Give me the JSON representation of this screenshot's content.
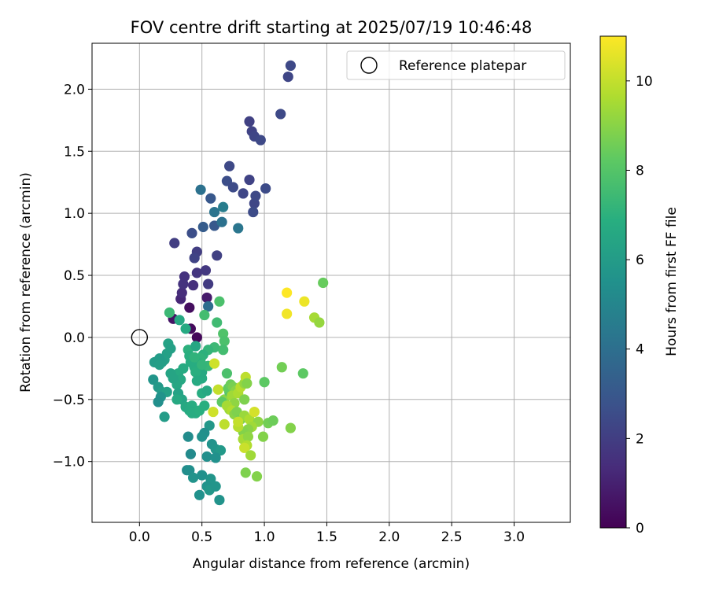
{
  "chart_data": {
    "type": "scatter",
    "title": "FOV centre drift starting at 2025/07/19 10:46:48",
    "xlabel": "Angular distance from reference (arcmin)",
    "ylabel": "Rotation from reference (arcmin)",
    "xlim": [
      -0.38,
      3.45
    ],
    "ylim": [
      -1.49,
      2.37
    ],
    "xticks": [
      0.0,
      0.5,
      1.0,
      1.5,
      2.0,
      2.5,
      3.0
    ],
    "xtick_labels": [
      "0.0",
      "0.5",
      "1.0",
      "1.5",
      "2.0",
      "2.5",
      "3.0"
    ],
    "yticks": [
      -1.0,
      -0.5,
      0.0,
      0.5,
      1.0,
      1.5,
      2.0
    ],
    "ytick_labels": [
      "−1.0",
      "−0.5",
      "0.0",
      "0.5",
      "1.0",
      "1.5",
      "2.0"
    ],
    "grid": true,
    "legend": {
      "position": "top-right",
      "entries": [
        "Reference platepar"
      ]
    },
    "colorbar": {
      "label": "Hours from first FF file",
      "colormap": "viridis",
      "range": [
        0,
        11
      ],
      "ticks": [
        0,
        2,
        4,
        6,
        8,
        10
      ],
      "tick_labels": [
        "0",
        "2",
        "4",
        "6",
        "8",
        "10"
      ]
    },
    "reference_point": {
      "x": 0.0,
      "y": 0.0
    },
    "points": [
      {
        "x": 0.41,
        "y": 0.07,
        "h": 0.3
      },
      {
        "x": 0.46,
        "y": 0.0,
        "h": 0.2
      },
      {
        "x": 0.4,
        "y": 0.24,
        "h": 0.4
      },
      {
        "x": 0.27,
        "y": 0.15,
        "h": 0.6
      },
      {
        "x": 0.54,
        "y": 0.32,
        "h": 0.8
      },
      {
        "x": 0.33,
        "y": 0.31,
        "h": 1.2
      },
      {
        "x": 0.34,
        "y": 0.36,
        "h": 1.4
      },
      {
        "x": 0.43,
        "y": 0.42,
        "h": 1.5
      },
      {
        "x": 0.35,
        "y": 0.43,
        "h": 1.6
      },
      {
        "x": 0.36,
        "y": 0.49,
        "h": 1.6
      },
      {
        "x": 0.46,
        "y": 0.52,
        "h": 1.7
      },
      {
        "x": 0.53,
        "y": 0.54,
        "h": 1.8
      },
      {
        "x": 0.55,
        "y": 0.43,
        "h": 1.9
      },
      {
        "x": 0.46,
        "y": 0.69,
        "h": 2.0
      },
      {
        "x": 0.28,
        "y": 0.76,
        "h": 2.0
      },
      {
        "x": 0.62,
        "y": 0.66,
        "h": 2.1
      },
      {
        "x": 0.44,
        "y": 0.64,
        "h": 2.2
      },
      {
        "x": 0.42,
        "y": 0.84,
        "h": 2.6
      },
      {
        "x": 0.51,
        "y": 0.89,
        "h": 3.2
      },
      {
        "x": 0.6,
        "y": 0.9,
        "h": 3.0
      },
      {
        "x": 0.66,
        "y": 0.93,
        "h": 4.1
      },
      {
        "x": 0.6,
        "y": 1.01,
        "h": 4.2
      },
      {
        "x": 0.67,
        "y": 1.05,
        "h": 4.6
      },
      {
        "x": 0.79,
        "y": 0.88,
        "h": 4.3
      },
      {
        "x": 0.57,
        "y": 1.12,
        "h": 3.0
      },
      {
        "x": 0.49,
        "y": 1.19,
        "h": 4.1
      },
      {
        "x": 0.7,
        "y": 1.26,
        "h": 2.6
      },
      {
        "x": 0.75,
        "y": 1.21,
        "h": 2.5
      },
      {
        "x": 0.72,
        "y": 1.38,
        "h": 2.4
      },
      {
        "x": 0.83,
        "y": 1.16,
        "h": 2.3
      },
      {
        "x": 0.88,
        "y": 1.27,
        "h": 2.2
      },
      {
        "x": 0.92,
        "y": 1.08,
        "h": 2.3
      },
      {
        "x": 0.93,
        "y": 1.14,
        "h": 2.4
      },
      {
        "x": 0.91,
        "y": 1.01,
        "h": 2.5
      },
      {
        "x": 1.01,
        "y": 1.2,
        "h": 2.5
      },
      {
        "x": 0.88,
        "y": 1.74,
        "h": 2.1
      },
      {
        "x": 0.9,
        "y": 1.66,
        "h": 2.2
      },
      {
        "x": 0.92,
        "y": 1.62,
        "h": 2.3
      },
      {
        "x": 0.97,
        "y": 1.59,
        "h": 2.4
      },
      {
        "x": 1.13,
        "y": 1.8,
        "h": 2.4
      },
      {
        "x": 1.19,
        "y": 2.1,
        "h": 2.3
      },
      {
        "x": 1.21,
        "y": 2.19,
        "h": 2.4
      },
      {
        "x": 0.37,
        "y": 0.07,
        "h": 6.7
      },
      {
        "x": 0.32,
        "y": 0.14,
        "h": 6.6
      },
      {
        "x": 0.24,
        "y": 0.2,
        "h": 7.4
      },
      {
        "x": 0.55,
        "y": 0.25,
        "h": 3.9
      },
      {
        "x": 0.52,
        "y": 0.18,
        "h": 7.6
      },
      {
        "x": 0.62,
        "y": 0.12,
        "h": 7.5
      },
      {
        "x": 0.64,
        "y": 0.29,
        "h": 7.8
      },
      {
        "x": 0.67,
        "y": 0.03,
        "h": 7.9
      },
      {
        "x": 0.68,
        "y": -0.03,
        "h": 7.8
      },
      {
        "x": 0.67,
        "y": -0.1,
        "h": 7.6
      },
      {
        "x": 0.6,
        "y": -0.08,
        "h": 7.4
      },
      {
        "x": 0.55,
        "y": -0.1,
        "h": 7.2
      },
      {
        "x": 0.51,
        "y": -0.14,
        "h": 7.0
      },
      {
        "x": 0.49,
        "y": -0.17,
        "h": 7.1
      },
      {
        "x": 0.48,
        "y": -0.21,
        "h": 6.9
      },
      {
        "x": 0.44,
        "y": -0.24,
        "h": 6.8
      },
      {
        "x": 0.39,
        "y": -0.1,
        "h": 7.0
      },
      {
        "x": 0.4,
        "y": -0.15,
        "h": 6.9
      },
      {
        "x": 0.41,
        "y": -0.2,
        "h": 6.8
      },
      {
        "x": 0.35,
        "y": -0.25,
        "h": 6.7
      },
      {
        "x": 0.31,
        "y": -0.29,
        "h": 6.7
      },
      {
        "x": 0.33,
        "y": -0.34,
        "h": 6.6
      },
      {
        "x": 0.3,
        "y": -0.38,
        "h": 6.5
      },
      {
        "x": 0.27,
        "y": -0.33,
        "h": 6.4
      },
      {
        "x": 0.25,
        "y": -0.29,
        "h": 6.4
      },
      {
        "x": 0.23,
        "y": -0.05,
        "h": 6.3
      },
      {
        "x": 0.25,
        "y": -0.09,
        "h": 6.2
      },
      {
        "x": 0.22,
        "y": -0.13,
        "h": 6.2
      },
      {
        "x": 0.2,
        "y": -0.18,
        "h": 6.2
      },
      {
        "x": 0.18,
        "y": -0.2,
        "h": 6.1
      },
      {
        "x": 0.16,
        "y": -0.17,
        "h": 6.0
      },
      {
        "x": 0.12,
        "y": -0.2,
        "h": 6.0
      },
      {
        "x": 0.16,
        "y": -0.22,
        "h": 6.1
      },
      {
        "x": 0.11,
        "y": -0.34,
        "h": 5.7
      },
      {
        "x": 0.15,
        "y": -0.4,
        "h": 5.9
      },
      {
        "x": 0.18,
        "y": -0.44,
        "h": 6.0
      },
      {
        "x": 0.22,
        "y": -0.44,
        "h": 6.2
      },
      {
        "x": 0.17,
        "y": -0.48,
        "h": 5.6
      },
      {
        "x": 0.15,
        "y": -0.52,
        "h": 5.4
      },
      {
        "x": 0.2,
        "y": -0.64,
        "h": 6.0
      },
      {
        "x": 0.31,
        "y": -0.45,
        "h": 6.3
      },
      {
        "x": 0.34,
        "y": -0.5,
        "h": 6.4
      },
      {
        "x": 0.3,
        "y": -0.5,
        "h": 6.6
      },
      {
        "x": 0.37,
        "y": -0.56,
        "h": 6.6
      },
      {
        "x": 0.42,
        "y": -0.55,
        "h": 6.8
      },
      {
        "x": 0.4,
        "y": -0.59,
        "h": 6.7
      },
      {
        "x": 0.42,
        "y": -0.61,
        "h": 6.8
      },
      {
        "x": 0.45,
        "y": -0.61,
        "h": 6.8
      },
      {
        "x": 0.48,
        "y": -0.59,
        "h": 6.9
      },
      {
        "x": 0.52,
        "y": -0.55,
        "h": 6.9
      },
      {
        "x": 0.5,
        "y": -0.45,
        "h": 6.8
      },
      {
        "x": 0.54,
        "y": -0.43,
        "h": 6.6
      },
      {
        "x": 0.5,
        "y": -0.33,
        "h": 6.7
      },
      {
        "x": 0.5,
        "y": -0.28,
        "h": 6.6
      },
      {
        "x": 0.45,
        "y": -0.28,
        "h": 6.9
      },
      {
        "x": 0.46,
        "y": -0.35,
        "h": 6.7
      },
      {
        "x": 0.55,
        "y": -0.23,
        "h": 7.3
      },
      {
        "x": 0.44,
        "y": -0.16,
        "h": 7.1
      },
      {
        "x": 0.5,
        "y": -0.22,
        "h": 7.2
      },
      {
        "x": 0.45,
        "y": -0.07,
        "h": 6.5
      },
      {
        "x": 0.6,
        "y": -0.21,
        "h": 10.2
      },
      {
        "x": 0.7,
        "y": -0.29,
        "h": 7.8
      },
      {
        "x": 0.63,
        "y": -0.42,
        "h": 10.0
      },
      {
        "x": 0.68,
        "y": -0.5,
        "h": 9.0
      },
      {
        "x": 0.66,
        "y": -0.52,
        "h": 8.2
      },
      {
        "x": 0.72,
        "y": -0.44,
        "h": 8.0
      },
      {
        "x": 0.71,
        "y": -0.41,
        "h": 8.3
      },
      {
        "x": 0.73,
        "y": -0.38,
        "h": 8.5
      },
      {
        "x": 0.75,
        "y": -0.4,
        "h": 8.7
      },
      {
        "x": 0.77,
        "y": -0.43,
        "h": 9.0
      },
      {
        "x": 0.74,
        "y": -0.47,
        "h": 9.4
      },
      {
        "x": 0.79,
        "y": -0.45,
        "h": 9.6
      },
      {
        "x": 0.81,
        "y": -0.4,
        "h": 9.8
      },
      {
        "x": 0.84,
        "y": -0.37,
        "h": 9.2
      },
      {
        "x": 0.85,
        "y": -0.32,
        "h": 9.9
      },
      {
        "x": 0.86,
        "y": -0.37,
        "h": 8.9
      },
      {
        "x": 1.0,
        "y": -0.36,
        "h": 8.2
      },
      {
        "x": 0.84,
        "y": -0.5,
        "h": 8.8
      },
      {
        "x": 0.76,
        "y": -0.53,
        "h": 9.1
      },
      {
        "x": 0.72,
        "y": -0.58,
        "h": 9.3
      },
      {
        "x": 0.7,
        "y": -0.55,
        "h": 9.5
      },
      {
        "x": 0.74,
        "y": -0.59,
        "h": 9.7
      },
      {
        "x": 0.76,
        "y": -0.62,
        "h": 9.0
      },
      {
        "x": 0.78,
        "y": -0.6,
        "h": 8.8
      },
      {
        "x": 0.81,
        "y": -0.66,
        "h": 8.6
      },
      {
        "x": 0.84,
        "y": -0.63,
        "h": 9.3
      },
      {
        "x": 0.88,
        "y": -0.66,
        "h": 9.6
      },
      {
        "x": 0.92,
        "y": -0.6,
        "h": 10.3
      },
      {
        "x": 0.95,
        "y": -0.68,
        "h": 9.1
      },
      {
        "x": 0.9,
        "y": -0.72,
        "h": 9.4
      },
      {
        "x": 0.87,
        "y": -0.74,
        "h": 9.0
      },
      {
        "x": 0.83,
        "y": -0.76,
        "h": 8.9
      },
      {
        "x": 0.79,
        "y": -0.72,
        "h": 9.8
      },
      {
        "x": 0.79,
        "y": -0.68,
        "h": 10.0
      },
      {
        "x": 0.68,
        "y": -0.7,
        "h": 9.9
      },
      {
        "x": 0.59,
        "y": -0.6,
        "h": 10.2
      },
      {
        "x": 0.83,
        "y": -0.82,
        "h": 9.5
      },
      {
        "x": 0.87,
        "y": -0.8,
        "h": 9.1
      },
      {
        "x": 0.86,
        "y": -0.87,
        "h": 9.7
      },
      {
        "x": 0.84,
        "y": -0.89,
        "h": 10.1
      },
      {
        "x": 0.89,
        "y": -0.95,
        "h": 9.4
      },
      {
        "x": 0.99,
        "y": -0.8,
        "h": 8.9
      },
      {
        "x": 1.03,
        "y": -0.69,
        "h": 8.6
      },
      {
        "x": 1.07,
        "y": -0.67,
        "h": 8.5
      },
      {
        "x": 1.21,
        "y": -0.73,
        "h": 8.9
      },
      {
        "x": 0.85,
        "y": -1.09,
        "h": 8.8
      },
      {
        "x": 0.94,
        "y": -1.12,
        "h": 8.9
      },
      {
        "x": 1.14,
        "y": -0.24,
        "h": 8.6
      },
      {
        "x": 1.31,
        "y": -0.29,
        "h": 8.2
      },
      {
        "x": 1.18,
        "y": 0.36,
        "h": 11.0
      },
      {
        "x": 1.18,
        "y": 0.19,
        "h": 10.8
      },
      {
        "x": 1.32,
        "y": 0.29,
        "h": 10.7
      },
      {
        "x": 1.4,
        "y": 0.16,
        "h": 9.5
      },
      {
        "x": 1.44,
        "y": 0.12,
        "h": 9.2
      },
      {
        "x": 1.47,
        "y": 0.44,
        "h": 8.4
      },
      {
        "x": 0.56,
        "y": -0.71,
        "h": 5.8
      },
      {
        "x": 0.52,
        "y": -0.77,
        "h": 5.4
      },
      {
        "x": 0.5,
        "y": -0.8,
        "h": 5.5
      },
      {
        "x": 0.39,
        "y": -0.8,
        "h": 5.3
      },
      {
        "x": 0.58,
        "y": -0.86,
        "h": 5.6
      },
      {
        "x": 0.61,
        "y": -0.9,
        "h": 5.7
      },
      {
        "x": 0.65,
        "y": -0.91,
        "h": 5.9
      },
      {
        "x": 0.41,
        "y": -0.94,
        "h": 5.2
      },
      {
        "x": 0.54,
        "y": -0.96,
        "h": 5.4
      },
      {
        "x": 0.61,
        "y": -0.97,
        "h": 5.5
      },
      {
        "x": 0.38,
        "y": -1.07,
        "h": 5.3
      },
      {
        "x": 0.4,
        "y": -1.07,
        "h": 5.4
      },
      {
        "x": 0.43,
        "y": -1.13,
        "h": 5.6
      },
      {
        "x": 0.5,
        "y": -1.11,
        "h": 5.5
      },
      {
        "x": 0.57,
        "y": -1.14,
        "h": 5.7
      },
      {
        "x": 0.54,
        "y": -1.2,
        "h": 5.6
      },
      {
        "x": 0.56,
        "y": -1.23,
        "h": 5.8
      },
      {
        "x": 0.48,
        "y": -1.27,
        "h": 5.5
      },
      {
        "x": 0.64,
        "y": -1.31,
        "h": 5.6
      },
      {
        "x": 0.61,
        "y": -1.2,
        "h": 5.7
      }
    ]
  }
}
